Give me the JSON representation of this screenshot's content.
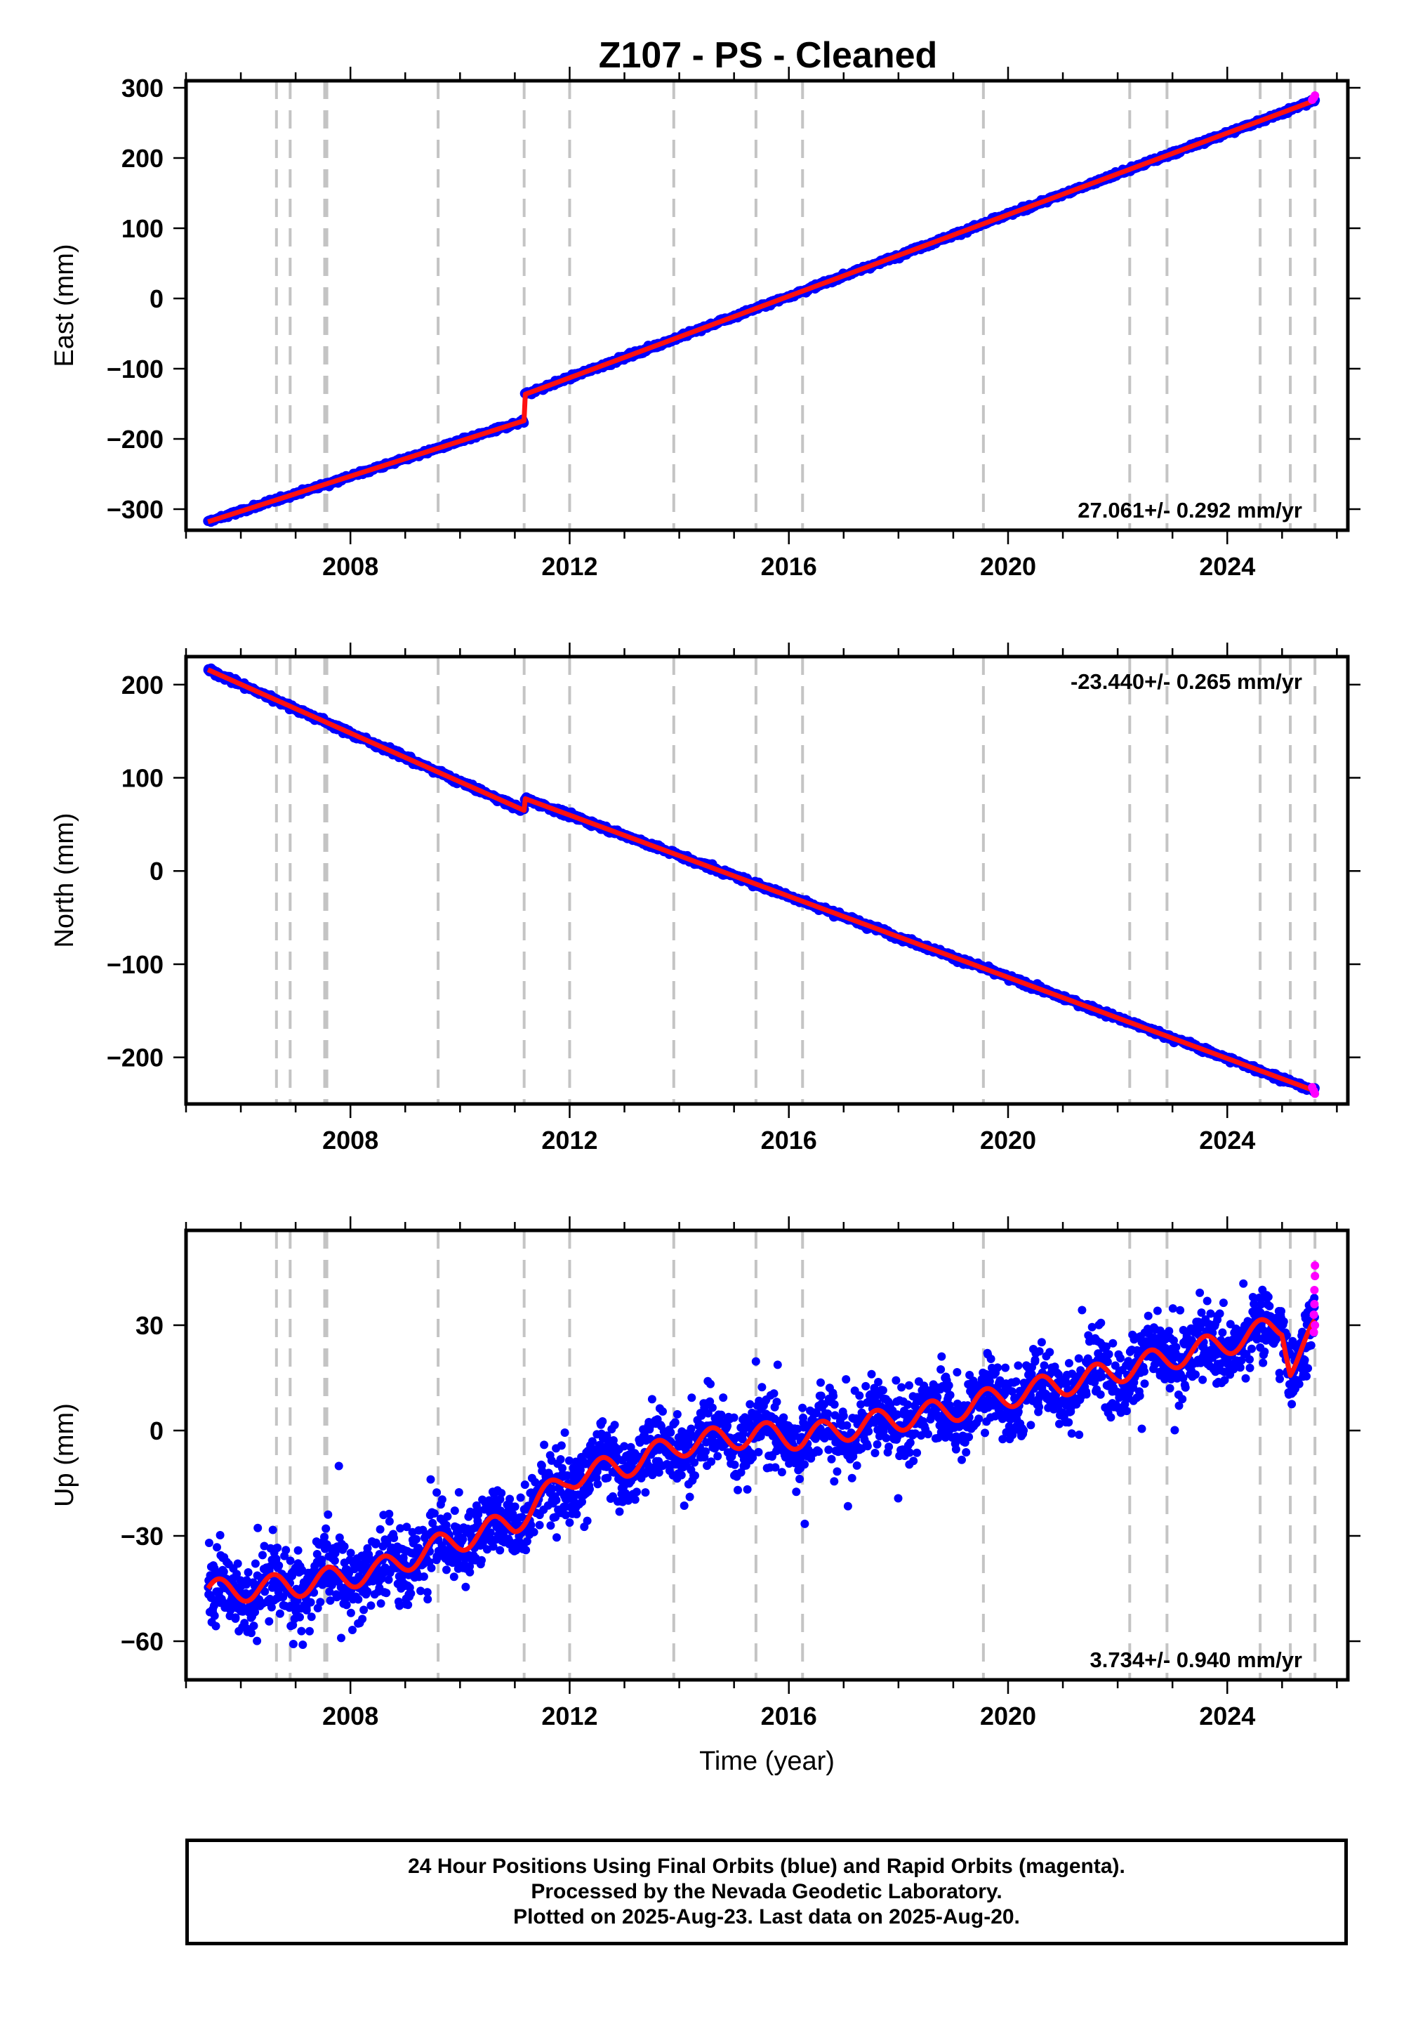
{
  "title": "Z107  - PS - Cleaned",
  "footer": {
    "line1": "24 Hour Positions Using Final Orbits (blue) and Rapid Orbits (magenta).",
    "line2": "Processed by the Nevada Geodetic Laboratory.",
    "line3": "Plotted on 2025-Aug-23. Last data on 2025-Aug-20."
  },
  "colors": {
    "final": "#0000ff",
    "rapid": "#ff00ff",
    "model": "#ff1010",
    "event_lines": "#c4c4c4"
  },
  "chart_data": [
    {
      "type": "scatter",
      "name": "east",
      "ylabel": "East (mm)",
      "xlabel": "",
      "xlim": [
        2005.0,
        2026.2
      ],
      "ylim": [
        -330,
        310
      ],
      "yticks": [
        -300,
        -200,
        -100,
        0,
        100,
        200,
        300
      ],
      "xticks": [
        2008,
        2012,
        2016,
        2020,
        2024
      ],
      "rate_label": "27.061+/- 0.292 mm/yr",
      "rate_position": "bottom-right",
      "grid": false,
      "event_lines": [
        2006.65,
        2006.9,
        2007.53,
        2007.57,
        2009.6,
        2011.17,
        2012.0,
        2013.9,
        2015.4,
        2016.25,
        2019.55,
        2022.22,
        2022.9,
        2024.6,
        2025.15,
        2025.6
      ],
      "trend": {
        "rate": 27.061,
        "rate_uncertainty": 0.292,
        "offsets": [
          {
            "t": 2011.17,
            "size": 37
          }
        ]
      },
      "trend_points": [
        [
          2005.4,
          -318
        ],
        [
          2011.17,
          -174
        ],
        [
          2011.17,
          -137
        ],
        [
          2025.6,
          282
        ]
      ],
      "scatter_sd": 2.2,
      "rapid_points": [
        [
          2025.55,
          283
        ],
        [
          2025.58,
          286
        ],
        [
          2025.6,
          289
        ]
      ]
    },
    {
      "type": "scatter",
      "name": "north",
      "ylabel": "North (mm)",
      "xlabel": "",
      "xlim": [
        2005.0,
        2026.2
      ],
      "ylim": [
        -250,
        230
      ],
      "yticks": [
        -200,
        -100,
        0,
        100,
        200
      ],
      "xticks": [
        2008,
        2012,
        2016,
        2020,
        2024
      ],
      "rate_label": "-23.440+/- 0.265 mm/yr",
      "rate_position": "top-right",
      "grid": false,
      "event_lines": [
        2006.65,
        2006.9,
        2007.53,
        2007.57,
        2009.6,
        2011.17,
        2012.0,
        2013.9,
        2015.4,
        2016.25,
        2019.55,
        2022.22,
        2022.9,
        2024.6,
        2025.15,
        2025.6
      ],
      "trend": {
        "rate": -23.44,
        "rate_uncertainty": 0.265,
        "offsets": [
          {
            "t": 2011.17,
            "size": 13
          }
        ]
      },
      "trend_points": [
        [
          2005.4,
          216
        ],
        [
          2011.17,
          65
        ],
        [
          2011.17,
          78
        ],
        [
          2025.6,
          -236
        ]
      ],
      "scatter_sd": 2.0,
      "rapid_points": [
        [
          2025.55,
          -232
        ],
        [
          2025.58,
          -236
        ],
        [
          2025.6,
          -239
        ]
      ]
    },
    {
      "type": "scatter",
      "name": "up",
      "ylabel": "Up (mm)",
      "xlabel": "Time (year)",
      "xlim": [
        2005.0,
        2026.2
      ],
      "ylim": [
        -71,
        57
      ],
      "yticks": [
        -60,
        -30,
        0,
        30
      ],
      "xticks": [
        2008,
        2012,
        2016,
        2020,
        2024
      ],
      "rate_label": "3.734+/- 0.940 mm/yr",
      "rate_position": "bottom-right",
      "grid": false,
      "event_lines": [
        2006.65,
        2006.9,
        2007.53,
        2007.57,
        2009.6,
        2011.17,
        2012.0,
        2013.9,
        2015.4,
        2016.25,
        2019.55,
        2022.22,
        2022.9,
        2024.6,
        2025.15,
        2025.6
      ],
      "trend": {
        "rate": 3.734,
        "rate_uncertainty": 0.94
      },
      "trend_points": [
        [
          2005.4,
          -46
        ],
        [
          2007.0,
          -44
        ],
        [
          2008.5,
          -40
        ],
        [
          2009.6,
          -33
        ],
        [
          2011.0,
          -26
        ],
        [
          2012.0,
          -13
        ],
        [
          2013.0,
          -10
        ],
        [
          2014.0,
          -4
        ],
        [
          2015.4,
          -1
        ],
        [
          2016.25,
          -2
        ],
        [
          2017.5,
          2
        ],
        [
          2019.0,
          6
        ],
        [
          2020.0,
          10
        ],
        [
          2021.5,
          15
        ],
        [
          2022.5,
          19
        ],
        [
          2024.0,
          25
        ],
        [
          2025.0,
          30
        ],
        [
          2025.15,
          19
        ],
        [
          2025.6,
          28
        ]
      ],
      "seasonal_amplitude": 3.5,
      "scatter_sd": 7,
      "rapid_points": [
        [
          2025.58,
          28
        ],
        [
          2025.58,
          33
        ],
        [
          2025.59,
          36
        ],
        [
          2025.59,
          40
        ],
        [
          2025.6,
          44
        ],
        [
          2025.6,
          47
        ],
        [
          2025.6,
          30
        ]
      ]
    }
  ]
}
